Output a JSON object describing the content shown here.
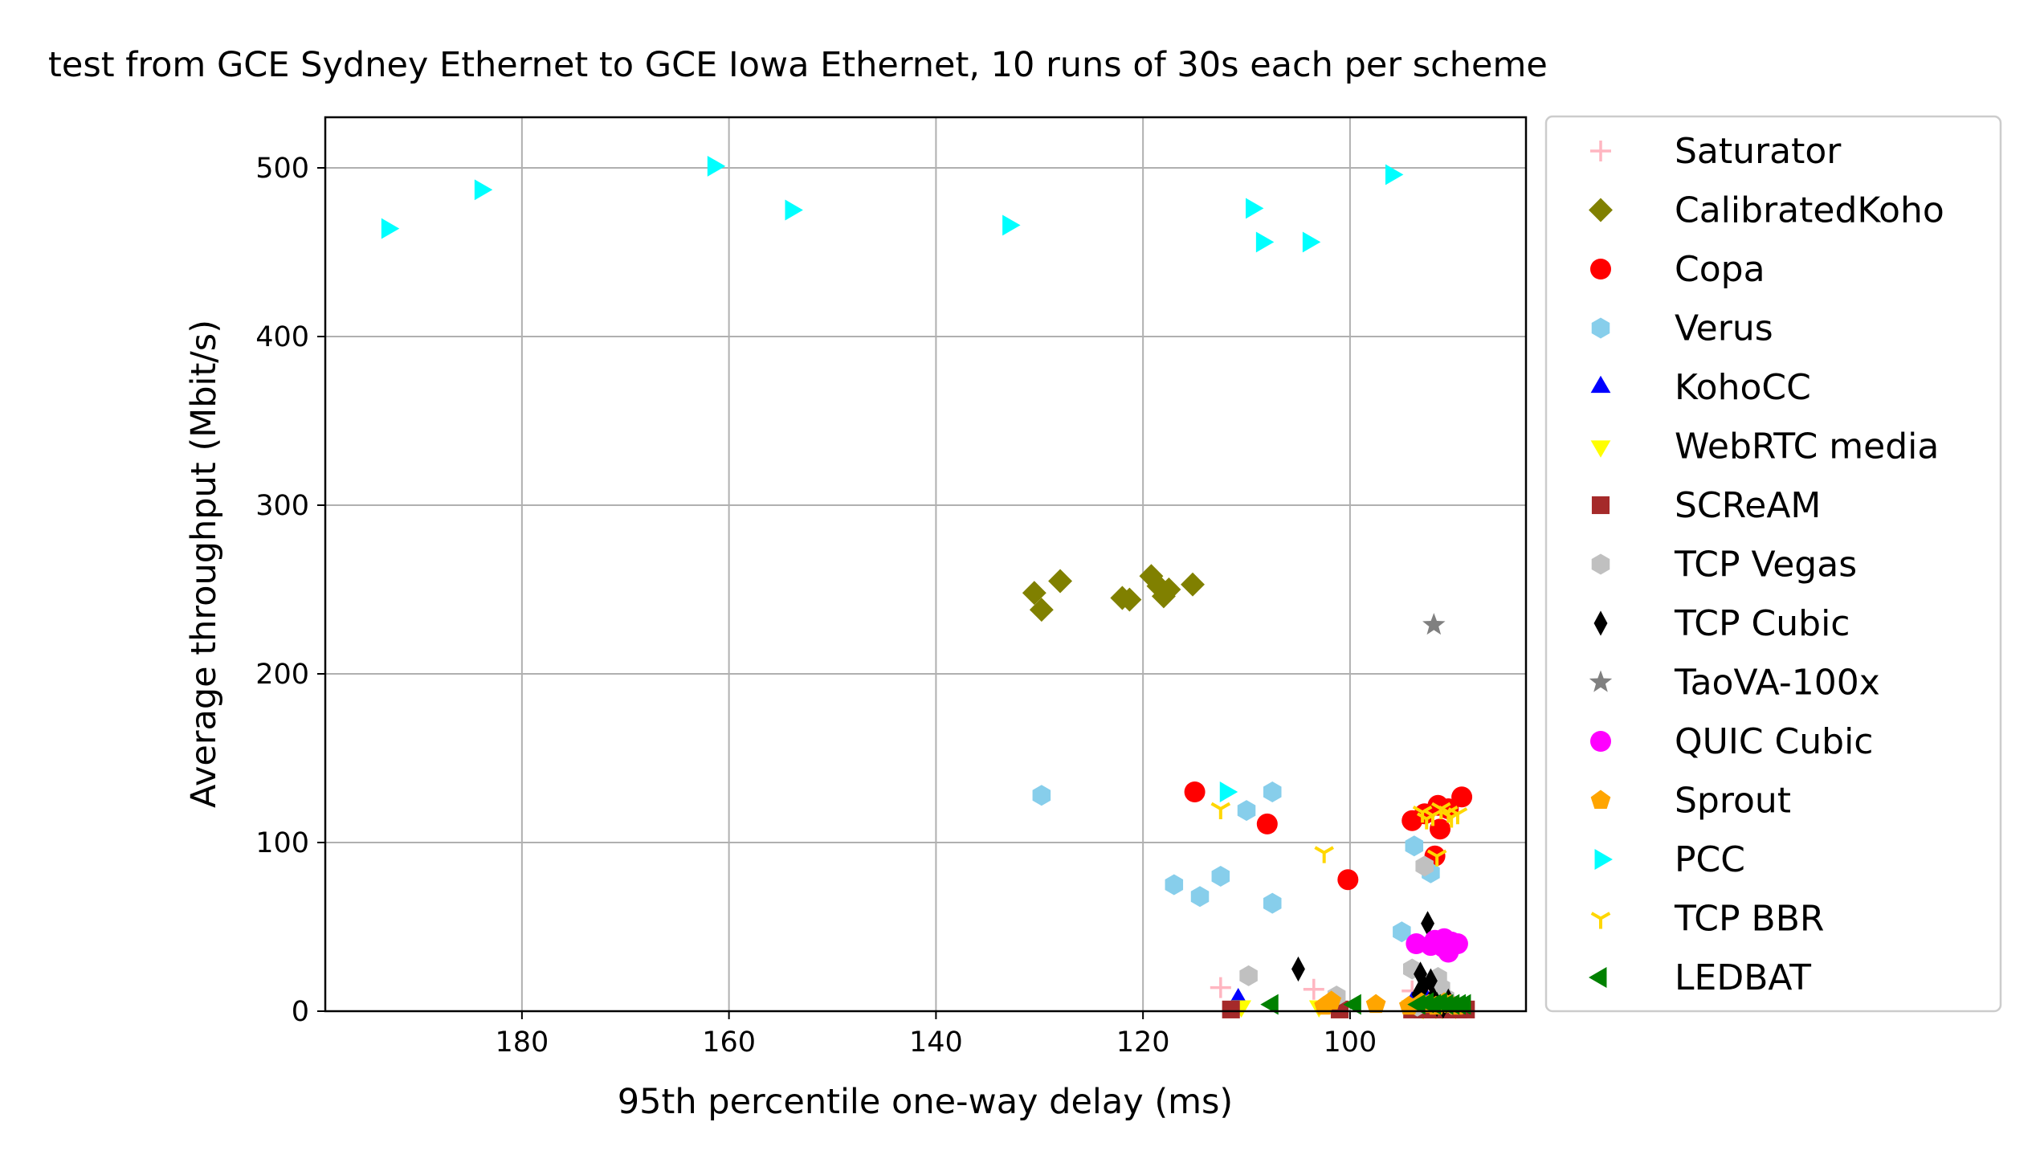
{
  "chart_data": {
    "type": "scatter",
    "title": "test from GCE Sydney Ethernet to GCE Iowa Ethernet, 10 runs of 30s each per scheme",
    "xlabel": "95th percentile one-way delay (ms)",
    "ylabel": "Average throughput (Mbit/s)",
    "xlim": [
      199,
      83
    ],
    "x_inverted": true,
    "ylim": [
      0,
      530
    ],
    "xticks": [
      180,
      160,
      140,
      120,
      100
    ],
    "yticks": [
      0,
      100,
      200,
      300,
      400,
      500
    ],
    "grid": true,
    "legend_position": "outside-right",
    "series": [
      {
        "name": "Saturator",
        "marker": "plus",
        "color": "#ffb6c1",
        "points": [
          [
            112.5,
            14
          ],
          [
            103.5,
            13
          ],
          [
            94,
            12
          ],
          [
            92,
            9
          ],
          [
            91,
            6
          ],
          [
            90.5,
            4
          ],
          [
            91.5,
            8
          ],
          [
            93,
            5
          ],
          [
            92.5,
            11
          ],
          [
            90,
            3
          ]
        ]
      },
      {
        "name": "CalibratedKoho",
        "marker": "diamond",
        "color": "#808000",
        "points": [
          [
            130.5,
            248
          ],
          [
            129.8,
            238
          ],
          [
            128,
            255
          ],
          [
            122,
            245
          ],
          [
            121.3,
            244
          ],
          [
            119.2,
            258
          ],
          [
            118.5,
            252
          ],
          [
            118,
            246
          ],
          [
            117.5,
            250
          ],
          [
            115.2,
            253
          ]
        ]
      },
      {
        "name": "Copa",
        "marker": "circle",
        "color": "#ff0000",
        "points": [
          [
            115,
            130
          ],
          [
            108,
            111
          ],
          [
            100.2,
            78
          ],
          [
            94,
            113
          ],
          [
            92.8,
            117
          ],
          [
            91.5,
            122
          ],
          [
            91.3,
            108
          ],
          [
            91.8,
            92
          ],
          [
            90.5,
            120
          ],
          [
            89.2,
            127
          ]
        ]
      },
      {
        "name": "Verus",
        "marker": "hexagon",
        "color": "#87ceeb",
        "points": [
          [
            129.8,
            128
          ],
          [
            117,
            75
          ],
          [
            114.5,
            68
          ],
          [
            112.5,
            80
          ],
          [
            110,
            119
          ],
          [
            107.5,
            130
          ],
          [
            107.5,
            64
          ],
          [
            95,
            47
          ],
          [
            93.8,
            98
          ],
          [
            92.2,
            82
          ]
        ]
      },
      {
        "name": "KohoCC",
        "marker": "triangle-up",
        "color": "#0000ff",
        "points": [
          [
            110.8,
            7
          ],
          [
            94,
            5
          ],
          [
            93.5,
            8
          ],
          [
            92,
            4
          ],
          [
            91.5,
            6
          ],
          [
            90.8,
            3
          ],
          [
            92.8,
            9
          ],
          [
            93.2,
            4
          ],
          [
            91,
            5
          ],
          [
            90.2,
            4
          ]
        ]
      },
      {
        "name": "WebRTC media",
        "marker": "triangle-down",
        "color": "#ffff00",
        "points": [
          [
            110.5,
            3
          ],
          [
            103,
            3
          ],
          [
            93,
            2
          ],
          [
            92.3,
            3
          ],
          [
            91.7,
            2
          ],
          [
            90.6,
            3
          ],
          [
            89.8,
            2
          ],
          [
            94.1,
            3
          ],
          [
            92.9,
            2
          ],
          [
            91.1,
            2
          ]
        ]
      },
      {
        "name": "SCReAM",
        "marker": "square",
        "color": "#a52a2a",
        "points": [
          [
            111.5,
            1
          ],
          [
            101,
            1
          ],
          [
            94,
            1
          ],
          [
            93,
            1
          ],
          [
            92,
            1
          ],
          [
            91.3,
            1
          ],
          [
            90.5,
            1
          ],
          [
            89.5,
            1
          ],
          [
            88.8,
            1
          ],
          [
            92.6,
            1
          ]
        ]
      },
      {
        "name": "TCP Vegas",
        "marker": "hexagon",
        "color": "#c0c0c0",
        "points": [
          [
            109.8,
            21
          ],
          [
            101.3,
            9
          ],
          [
            94,
            25
          ],
          [
            92.8,
            86
          ],
          [
            91.5,
            20
          ],
          [
            92,
            5
          ],
          [
            90.8,
            8
          ],
          [
            93.5,
            3
          ],
          [
            91.2,
            14
          ],
          [
            90.2,
            4
          ]
        ]
      },
      {
        "name": "TCP Cubic",
        "marker": "thin-diamond",
        "color": "#000000",
        "points": [
          [
            105,
            25
          ],
          [
            93.2,
            22
          ],
          [
            92.5,
            52
          ],
          [
            92.9,
            15
          ],
          [
            92,
            8
          ],
          [
            91.6,
            4
          ],
          [
            90.5,
            6
          ],
          [
            93.4,
            10
          ],
          [
            92.2,
            18
          ],
          [
            91,
            3
          ]
        ]
      },
      {
        "name": "TaoVA-100x",
        "marker": "star",
        "color": "#808080",
        "points": [
          [
            91.9,
            229
          ]
        ]
      },
      {
        "name": "QUIC Cubic",
        "marker": "circle",
        "color": "#ff00ff",
        "points": [
          [
            93.6,
            40
          ],
          [
            91.8,
            42
          ],
          [
            91,
            38
          ],
          [
            90.5,
            35
          ],
          [
            90.2,
            41
          ],
          [
            89.6,
            40
          ],
          [
            92.2,
            39
          ],
          [
            90.9,
            43
          ]
        ]
      },
      {
        "name": "Sprout",
        "marker": "pentagon",
        "color": "#ffa500",
        "points": [
          [
            102.5,
            3
          ],
          [
            101.8,
            6
          ],
          [
            97.5,
            4
          ],
          [
            94.3,
            3
          ],
          [
            93.1,
            5
          ],
          [
            92.4,
            4
          ],
          [
            91.7,
            3
          ],
          [
            90.9,
            5
          ],
          [
            90.3,
            4
          ],
          [
            89.7,
            3
          ]
        ]
      },
      {
        "name": "PCC",
        "marker": "triangle-right",
        "color": "#00ffff",
        "points": [
          [
            193,
            464
          ],
          [
            184,
            487
          ],
          [
            161.5,
            501
          ],
          [
            154,
            475
          ],
          [
            133,
            466
          ],
          [
            112,
            130
          ],
          [
            109.5,
            476
          ],
          [
            108.5,
            456
          ],
          [
            104,
            456
          ],
          [
            96,
            496
          ]
        ]
      },
      {
        "name": "TCP BBR",
        "marker": "tri-down",
        "color": "#ffd700",
        "points": [
          [
            112.5,
            120
          ],
          [
            102.5,
            94
          ],
          [
            93,
            118
          ],
          [
            92,
            116
          ],
          [
            91.6,
            92
          ],
          [
            90.5,
            118
          ],
          [
            89.6,
            117
          ],
          [
            91.2,
            120
          ],
          [
            92.6,
            114
          ],
          [
            90.2,
            115
          ]
        ]
      },
      {
        "name": "LEDBAT",
        "marker": "triangle-left",
        "color": "#008000",
        "points": [
          [
            107.5,
            4
          ],
          [
            99.5,
            4
          ],
          [
            93.3,
            4
          ],
          [
            92.5,
            5
          ],
          [
            91.8,
            4
          ],
          [
            91.2,
            5
          ],
          [
            90.6,
            4
          ],
          [
            90,
            4
          ],
          [
            89.4,
            4
          ],
          [
            88.9,
            4
          ]
        ]
      }
    ]
  }
}
